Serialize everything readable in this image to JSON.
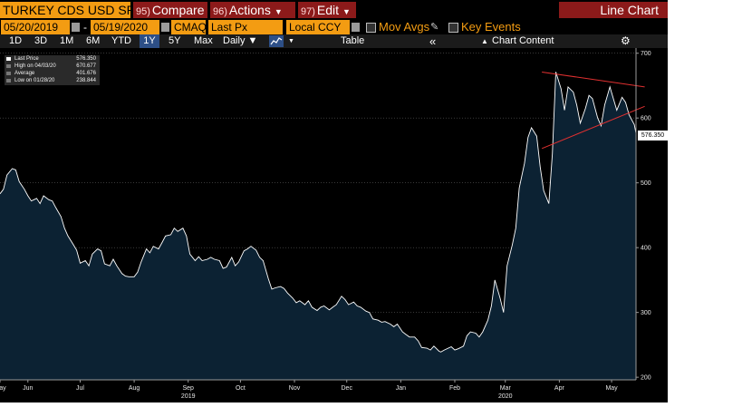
{
  "header": {
    "security": "TURKEY CDS USD SR",
    "menus": [
      {
        "num": "95)",
        "label": "Compare"
      },
      {
        "num": "96)",
        "label": "Actions"
      },
      {
        "num": "97)",
        "label": "Edit"
      }
    ],
    "chart_title": "Line Chart"
  },
  "controls": {
    "start_date": "05/20/2019",
    "end_date": "05/19/2020",
    "source": "CMAQ",
    "field": "Last Px",
    "currency": "Local CCY",
    "mov_avgs": "Mov Avgs",
    "key_events": "Key Events"
  },
  "toolbar": {
    "periods": [
      "1D",
      "3D",
      "1M",
      "6M",
      "YTD",
      "1Y",
      "5Y",
      "Max"
    ],
    "selected_period": "1Y",
    "frequency": "Daily",
    "table": "Table",
    "chart_content": "Chart Content"
  },
  "legend": {
    "rows": [
      {
        "name": "Last Price",
        "value": "576.350"
      },
      {
        "name": "High on 04/03/20",
        "value": "670.677"
      },
      {
        "name": "Average",
        "value": "401.676"
      },
      {
        "name": "Low on 01/28/20",
        "value": "238.844"
      }
    ]
  },
  "last_value": "576.350",
  "colors": {
    "orange": "#f39c12",
    "menu_red": "#8c1a1a",
    "line": "#ffffff",
    "fill": "#0c2233",
    "trendline": "#e03030"
  },
  "chart_data": {
    "type": "area",
    "title": "",
    "xlabel": "",
    "ylabel": "",
    "ylim": [
      196,
      708
    ],
    "yticks": [
      200,
      300,
      400,
      500,
      600,
      700
    ],
    "xlim": [
      "2019-05-20",
      "2020-05-19"
    ],
    "x_labels": [
      "May",
      "Jun",
      "Jul",
      "Aug",
      "Sep",
      "Oct",
      "Nov",
      "Dec",
      "Jan",
      "Feb",
      "Mar",
      "Apr",
      "May"
    ],
    "x_label_dates": [
      "2019-05-20",
      "2019-06-05",
      "2019-07-05",
      "2019-08-05",
      "2019-09-05",
      "2019-10-05",
      "2019-11-05",
      "2019-12-05",
      "2020-01-05",
      "2020-02-05",
      "2020-03-05",
      "2020-04-05",
      "2020-05-05"
    ],
    "year_labels": [
      {
        "label": "2019",
        "date": "2019-09-05"
      },
      {
        "label": "2020",
        "date": "2020-03-05"
      }
    ],
    "series": [
      {
        "values": [
          [
            "2019-05-20",
            483
          ],
          [
            "2019-05-22",
            490
          ],
          [
            "2019-05-24",
            512
          ],
          [
            "2019-05-27",
            522
          ],
          [
            "2019-05-29",
            520
          ],
          [
            "2019-05-31",
            502
          ],
          [
            "2019-06-03",
            490
          ],
          [
            "2019-06-05",
            480
          ],
          [
            "2019-06-07",
            472
          ],
          [
            "2019-06-10",
            476
          ],
          [
            "2019-06-12",
            468
          ],
          [
            "2019-06-14",
            480
          ],
          [
            "2019-06-17",
            474
          ],
          [
            "2019-06-19",
            472
          ],
          [
            "2019-06-21",
            462
          ],
          [
            "2019-06-24",
            448
          ],
          [
            "2019-06-26",
            430
          ],
          [
            "2019-06-28",
            418
          ],
          [
            "2019-07-01",
            405
          ],
          [
            "2019-07-03",
            396
          ],
          [
            "2019-07-05",
            376
          ],
          [
            "2019-07-08",
            380
          ],
          [
            "2019-07-10",
            372
          ],
          [
            "2019-07-12",
            390
          ],
          [
            "2019-07-15",
            398
          ],
          [
            "2019-07-17",
            395
          ],
          [
            "2019-07-19",
            375
          ],
          [
            "2019-07-22",
            372
          ],
          [
            "2019-07-24",
            382
          ],
          [
            "2019-07-26",
            372
          ],
          [
            "2019-07-29",
            360
          ],
          [
            "2019-07-31",
            356
          ],
          [
            "2019-08-02",
            355
          ],
          [
            "2019-08-05",
            355
          ],
          [
            "2019-08-07",
            362
          ],
          [
            "2019-08-09",
            378
          ],
          [
            "2019-08-12",
            398
          ],
          [
            "2019-08-14",
            392
          ],
          [
            "2019-08-16",
            402
          ],
          [
            "2019-08-19",
            398
          ],
          [
            "2019-08-21",
            408
          ],
          [
            "2019-08-23",
            418
          ],
          [
            "2019-08-26",
            420
          ],
          [
            "2019-08-28",
            430
          ],
          [
            "2019-08-30",
            425
          ],
          [
            "2019-09-02",
            430
          ],
          [
            "2019-09-04",
            418
          ],
          [
            "2019-09-06",
            390
          ],
          [
            "2019-09-09",
            380
          ],
          [
            "2019-09-11",
            386
          ],
          [
            "2019-09-13",
            380
          ],
          [
            "2019-09-16",
            382
          ],
          [
            "2019-09-18",
            385
          ],
          [
            "2019-09-20",
            382
          ],
          [
            "2019-09-23",
            380
          ],
          [
            "2019-09-25",
            368
          ],
          [
            "2019-09-27",
            370
          ],
          [
            "2019-09-30",
            385
          ],
          [
            "2019-10-02",
            372
          ],
          [
            "2019-10-04",
            378
          ],
          [
            "2019-10-07",
            395
          ],
          [
            "2019-10-09",
            398
          ],
          [
            "2019-10-11",
            402
          ],
          [
            "2019-10-14",
            396
          ],
          [
            "2019-10-16",
            385
          ],
          [
            "2019-10-18",
            380
          ],
          [
            "2019-10-21",
            352
          ],
          [
            "2019-10-23",
            336
          ],
          [
            "2019-10-25",
            338
          ],
          [
            "2019-10-28",
            340
          ],
          [
            "2019-10-30",
            337
          ],
          [
            "2019-11-01",
            330
          ],
          [
            "2019-11-04",
            322
          ],
          [
            "2019-11-06",
            315
          ],
          [
            "2019-11-08",
            318
          ],
          [
            "2019-11-11",
            312
          ],
          [
            "2019-11-13",
            318
          ],
          [
            "2019-11-15",
            308
          ],
          [
            "2019-11-18",
            303
          ],
          [
            "2019-11-20",
            308
          ],
          [
            "2019-11-22",
            310
          ],
          [
            "2019-11-25",
            304
          ],
          [
            "2019-11-27",
            308
          ],
          [
            "2019-11-29",
            312
          ],
          [
            "2019-12-02",
            325
          ],
          [
            "2019-12-04",
            320
          ],
          [
            "2019-12-06",
            312
          ],
          [
            "2019-12-09",
            316
          ],
          [
            "2019-12-11",
            310
          ],
          [
            "2019-12-13",
            308
          ],
          [
            "2019-12-16",
            302
          ],
          [
            "2019-12-18",
            300
          ],
          [
            "2019-12-20",
            290
          ],
          [
            "2019-12-23",
            288
          ],
          [
            "2019-12-25",
            285
          ],
          [
            "2019-12-27",
            286
          ],
          [
            "2019-12-30",
            282
          ],
          [
            "2020-01-01",
            278
          ],
          [
            "2020-01-03",
            282
          ],
          [
            "2020-01-06",
            270
          ],
          [
            "2020-01-08",
            266
          ],
          [
            "2020-01-10",
            262
          ],
          [
            "2020-01-13",
            262
          ],
          [
            "2020-01-15",
            256
          ],
          [
            "2020-01-17",
            246
          ],
          [
            "2020-01-20",
            245
          ],
          [
            "2020-01-22",
            242
          ],
          [
            "2020-01-24",
            248
          ],
          [
            "2020-01-27",
            240
          ],
          [
            "2020-01-28",
            239
          ],
          [
            "2020-01-30",
            242
          ],
          [
            "2020-02-03",
            247
          ],
          [
            "2020-02-05",
            242
          ],
          [
            "2020-02-07",
            244
          ],
          [
            "2020-02-10",
            248
          ],
          [
            "2020-02-12",
            264
          ],
          [
            "2020-02-14",
            270
          ],
          [
            "2020-02-17",
            268
          ],
          [
            "2020-02-19",
            262
          ],
          [
            "2020-02-21",
            270
          ],
          [
            "2020-02-24",
            288
          ],
          [
            "2020-02-26",
            310
          ],
          [
            "2020-02-28",
            350
          ],
          [
            "2020-03-02",
            322
          ],
          [
            "2020-03-04",
            300
          ],
          [
            "2020-03-06",
            372
          ],
          [
            "2020-03-09",
            404
          ],
          [
            "2020-03-11",
            430
          ],
          [
            "2020-03-13",
            492
          ],
          [
            "2020-03-16",
            530
          ],
          [
            "2020-03-18",
            570
          ],
          [
            "2020-03-20",
            585
          ],
          [
            "2020-03-23",
            572
          ],
          [
            "2020-03-25",
            525
          ],
          [
            "2020-03-27",
            488
          ],
          [
            "2020-03-30",
            468
          ],
          [
            "2020-04-01",
            545
          ],
          [
            "2020-04-03",
            671
          ],
          [
            "2020-04-06",
            645
          ],
          [
            "2020-04-08",
            612
          ],
          [
            "2020-04-10",
            648
          ],
          [
            "2020-04-13",
            640
          ],
          [
            "2020-04-15",
            620
          ],
          [
            "2020-04-17",
            592
          ],
          [
            "2020-04-20",
            615
          ],
          [
            "2020-04-22",
            635
          ],
          [
            "2020-04-24",
            630
          ],
          [
            "2020-04-27",
            600
          ],
          [
            "2020-04-29",
            588
          ],
          [
            "2020-05-01",
            620
          ],
          [
            "2020-05-04",
            648
          ],
          [
            "2020-05-06",
            630
          ],
          [
            "2020-05-08",
            612
          ],
          [
            "2020-05-11",
            632
          ],
          [
            "2020-05-13",
            624
          ],
          [
            "2020-05-15",
            605
          ],
          [
            "2020-05-18",
            590
          ],
          [
            "2020-05-19",
            576.35
          ]
        ]
      }
    ],
    "trendlines": [
      {
        "from": [
          "2020-03-26",
          671
        ],
        "to": [
          "2020-05-24",
          648
        ]
      },
      {
        "from": [
          "2020-03-26",
          553
        ],
        "to": [
          "2020-05-24",
          618
        ]
      }
    ]
  }
}
